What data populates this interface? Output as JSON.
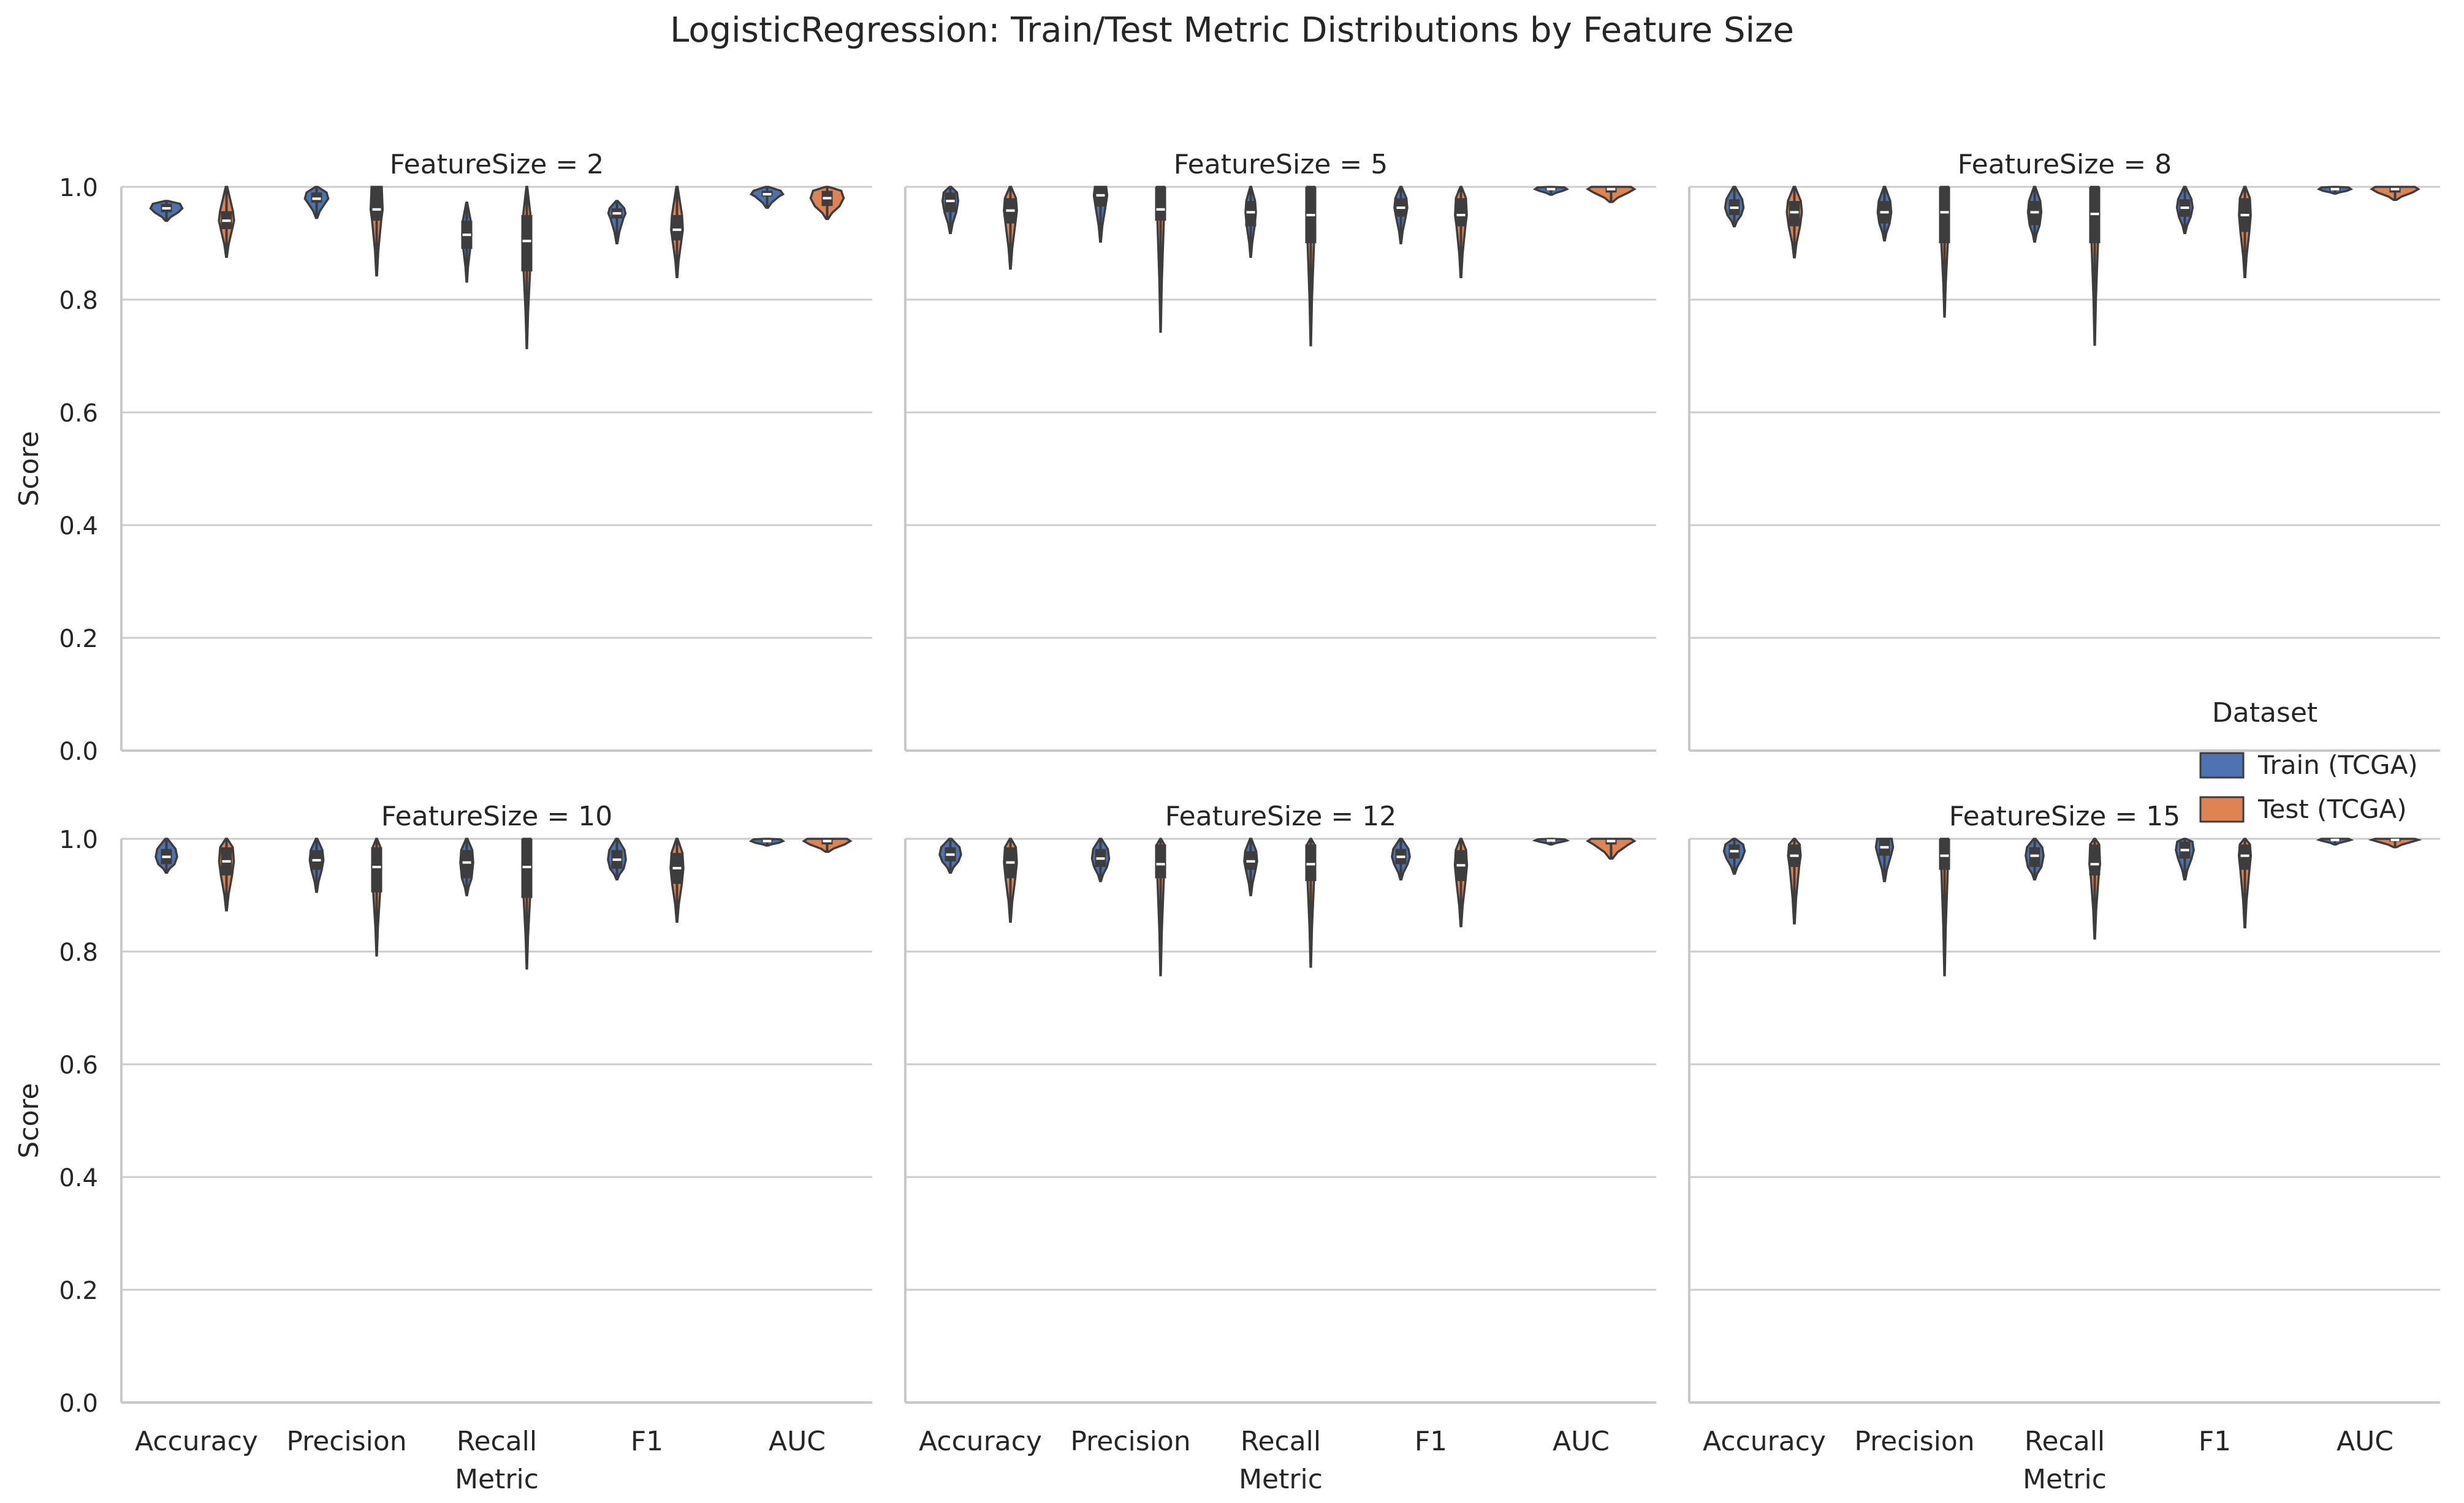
{
  "figure": {
    "title": "LogisticRegression: Train/Test Metric Distributions by Feature Size"
  },
  "legend": {
    "title": "Dataset",
    "placement": "right",
    "entries": [
      {
        "label": "Train (TCGA)",
        "color": "#4c72b0"
      },
      {
        "label": "Test (TCGA)",
        "color": "#dd8452"
      }
    ]
  },
  "colors": {
    "train": "#4c72b0",
    "test": "#dd8452",
    "grid": "#cccccc",
    "spine": "#c8c8c8",
    "dark": "#3d3d3d"
  },
  "chart_data": {
    "type": "violin",
    "categories": [
      "Accuracy",
      "Precision",
      "Recall",
      "F1",
      "AUC"
    ],
    "xlabel": "Metric",
    "ylabel": "Score",
    "ylim": [
      0,
      1.0
    ],
    "yticks": [
      "0.0",
      "0.2",
      "0.4",
      "0.6",
      "0.8",
      "1.0"
    ],
    "grid": "horizontal",
    "series_names": [
      "Train (TCGA)",
      "Test (TCGA)"
    ],
    "panels": [
      {
        "title": "FeatureSize = 2",
        "train": [
          {
            "min": 0.94,
            "q1": 0.955,
            "median": 0.962,
            "q3": 0.97,
            "max": 0.975
          },
          {
            "min": 0.945,
            "q1": 0.972,
            "median": 0.979,
            "q3": 0.99,
            "max": 1.0
          },
          {
            "min": 0.832,
            "q1": 0.89,
            "median": 0.915,
            "q3": 0.94,
            "max": 0.972
          },
          {
            "min": 0.9,
            "q1": 0.944,
            "median": 0.953,
            "q3": 0.962,
            "max": 0.975
          },
          {
            "min": 0.963,
            "q1": 0.983,
            "median": 0.987,
            "q3": 0.993,
            "max": 1.0
          }
        ],
        "test": [
          {
            "min": 0.876,
            "q1": 0.925,
            "median": 0.94,
            "q3": 0.957,
            "max": 1.0
          },
          {
            "min": 0.843,
            "q1": 0.94,
            "median": 0.96,
            "q3": 1.0,
            "max": 1.0
          },
          {
            "min": 0.714,
            "q1": 0.85,
            "median": 0.904,
            "q3": 0.95,
            "max": 1.0
          },
          {
            "min": 0.84,
            "q1": 0.905,
            "median": 0.924,
            "q3": 0.95,
            "max": 1.0
          },
          {
            "min": 0.943,
            "q1": 0.966,
            "median": 0.98,
            "q3": 0.993,
            "max": 1.0
          }
        ]
      },
      {
        "title": "FeatureSize = 5",
        "train": [
          {
            "min": 0.918,
            "q1": 0.955,
            "median": 0.975,
            "q3": 0.99,
            "max": 1.0
          },
          {
            "min": 0.903,
            "q1": 0.965,
            "median": 0.985,
            "q3": 1.0,
            "max": 1.0
          },
          {
            "min": 0.876,
            "q1": 0.93,
            "median": 0.955,
            "q3": 0.975,
            "max": 1.0
          },
          {
            "min": 0.9,
            "q1": 0.947,
            "median": 0.963,
            "q3": 0.98,
            "max": 1.0
          },
          {
            "min": 0.986,
            "q1": 0.993,
            "median": 0.996,
            "q3": 0.999,
            "max": 1.0
          }
        ],
        "test": [
          {
            "min": 0.855,
            "q1": 0.935,
            "median": 0.958,
            "q3": 0.98,
            "max": 1.0
          },
          {
            "min": 0.743,
            "q1": 0.94,
            "median": 0.96,
            "q3": 1.0,
            "max": 1.0
          },
          {
            "min": 0.719,
            "q1": 0.9,
            "median": 0.95,
            "q3": 1.0,
            "max": 1.0
          },
          {
            "min": 0.84,
            "q1": 0.93,
            "median": 0.95,
            "q3": 0.98,
            "max": 1.0
          },
          {
            "min": 0.973,
            "q1": 0.99,
            "median": 0.996,
            "q3": 1.0,
            "max": 1.0
          }
        ]
      },
      {
        "title": "FeatureSize = 8",
        "train": [
          {
            "min": 0.93,
            "q1": 0.95,
            "median": 0.963,
            "q3": 0.978,
            "max": 1.0
          },
          {
            "min": 0.905,
            "q1": 0.935,
            "median": 0.955,
            "q3": 0.975,
            "max": 1.0
          },
          {
            "min": 0.903,
            "q1": 0.932,
            "median": 0.955,
            "q3": 0.975,
            "max": 1.0
          },
          {
            "min": 0.918,
            "q1": 0.947,
            "median": 0.963,
            "q3": 0.978,
            "max": 1.0
          },
          {
            "min": 0.988,
            "q1": 0.993,
            "median": 0.996,
            "q3": 0.999,
            "max": 1.0
          }
        ],
        "test": [
          {
            "min": 0.875,
            "q1": 0.93,
            "median": 0.955,
            "q3": 0.975,
            "max": 1.0
          },
          {
            "min": 0.77,
            "q1": 0.9,
            "median": 0.955,
            "q3": 1.0,
            "max": 1.0
          },
          {
            "min": 0.72,
            "q1": 0.9,
            "median": 0.952,
            "q3": 1.0,
            "max": 1.0
          },
          {
            "min": 0.84,
            "q1": 0.92,
            "median": 0.95,
            "q3": 0.98,
            "max": 1.0
          },
          {
            "min": 0.977,
            "q1": 0.99,
            "median": 0.996,
            "q3": 1.0,
            "max": 1.0
          }
        ]
      },
      {
        "title": "FeatureSize = 10",
        "train": [
          {
            "min": 0.94,
            "q1": 0.955,
            "median": 0.968,
            "q3": 0.982,
            "max": 1.0
          },
          {
            "min": 0.906,
            "q1": 0.945,
            "median": 0.962,
            "q3": 0.98,
            "max": 1.0
          },
          {
            "min": 0.9,
            "q1": 0.93,
            "median": 0.958,
            "q3": 0.98,
            "max": 1.0
          },
          {
            "min": 0.928,
            "q1": 0.947,
            "median": 0.963,
            "q3": 0.98,
            "max": 1.0
          },
          {
            "min": 0.988,
            "q1": 0.993,
            "median": 0.996,
            "q3": 0.999,
            "max": 1.0
          }
        ],
        "test": [
          {
            "min": 0.873,
            "q1": 0.935,
            "median": 0.96,
            "q3": 0.985,
            "max": 1.0
          },
          {
            "min": 0.793,
            "q1": 0.905,
            "median": 0.95,
            "q3": 0.985,
            "max": 1.0
          },
          {
            "min": 0.77,
            "q1": 0.895,
            "median": 0.95,
            "q3": 1.0,
            "max": 1.0
          },
          {
            "min": 0.853,
            "q1": 0.92,
            "median": 0.948,
            "q3": 0.975,
            "max": 1.0
          },
          {
            "min": 0.977,
            "q1": 0.99,
            "median": 0.996,
            "q3": 1.0,
            "max": 1.0
          }
        ]
      },
      {
        "title": "FeatureSize = 12",
        "train": [
          {
            "min": 0.94,
            "q1": 0.96,
            "median": 0.972,
            "q3": 0.985,
            "max": 1.0
          },
          {
            "min": 0.925,
            "q1": 0.95,
            "median": 0.965,
            "q3": 0.982,
            "max": 1.0
          },
          {
            "min": 0.9,
            "q1": 0.945,
            "median": 0.96,
            "q3": 0.978,
            "max": 1.0
          },
          {
            "min": 0.928,
            "q1": 0.955,
            "median": 0.968,
            "q3": 0.982,
            "max": 1.0
          },
          {
            "min": 0.99,
            "q1": 0.995,
            "median": 0.997,
            "q3": 0.999,
            "max": 1.0
          }
        ],
        "test": [
          {
            "min": 0.853,
            "q1": 0.93,
            "median": 0.958,
            "q3": 0.985,
            "max": 1.0
          },
          {
            "min": 0.758,
            "q1": 0.93,
            "median": 0.955,
            "q3": 0.99,
            "max": 1.0
          },
          {
            "min": 0.773,
            "q1": 0.925,
            "median": 0.955,
            "q3": 0.99,
            "max": 1.0
          },
          {
            "min": 0.845,
            "q1": 0.925,
            "median": 0.953,
            "q3": 0.98,
            "max": 1.0
          },
          {
            "min": 0.965,
            "q1": 0.99,
            "median": 0.996,
            "q3": 1.0,
            "max": 1.0
          }
        ]
      },
      {
        "title": "FeatureSize = 15",
        "train": [
          {
            "min": 0.938,
            "q1": 0.965,
            "median": 0.978,
            "q3": 0.99,
            "max": 1.0
          },
          {
            "min": 0.925,
            "q1": 0.97,
            "median": 0.985,
            "q3": 1.0,
            "max": 1.0
          },
          {
            "min": 0.928,
            "q1": 0.95,
            "median": 0.97,
            "q3": 0.985,
            "max": 1.0
          },
          {
            "min": 0.928,
            "q1": 0.965,
            "median": 0.98,
            "q3": 0.995,
            "max": 1.0
          },
          {
            "min": 0.99,
            "q1": 0.996,
            "median": 0.998,
            "q3": 1.0,
            "max": 1.0
          }
        ],
        "test": [
          {
            "min": 0.85,
            "q1": 0.95,
            "median": 0.97,
            "q3": 0.99,
            "max": 1.0
          },
          {
            "min": 0.758,
            "q1": 0.945,
            "median": 0.97,
            "q3": 1.0,
            "max": 1.0
          },
          {
            "min": 0.823,
            "q1": 0.935,
            "median": 0.955,
            "q3": 0.99,
            "max": 1.0
          },
          {
            "min": 0.843,
            "q1": 0.945,
            "median": 0.97,
            "q3": 0.99,
            "max": 1.0
          },
          {
            "min": 0.985,
            "q1": 0.995,
            "median": 0.998,
            "q3": 1.0,
            "max": 1.0
          }
        ]
      }
    ]
  }
}
